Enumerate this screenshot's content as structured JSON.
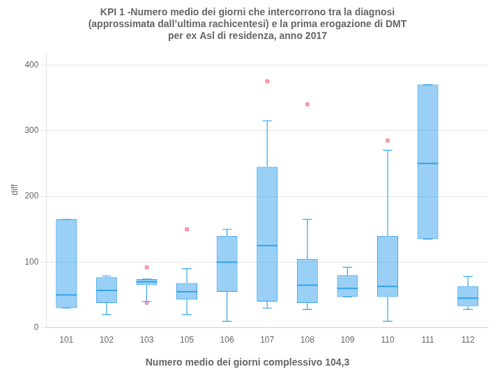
{
  "chart_data": {
    "type": "box",
    "title": "KPI 1 -Numero medio dei giorni che intercorrono tra la diagnosi\n(approssimata dall’ultima rachicentesi) e la prima erogazione di DMT\nper ex Asl di residenza, anno 2017",
    "subtitle": "Numero medio dei giorni complessivo 104,3",
    "ylabel": "diff",
    "categories": [
      "101",
      "102",
      "103",
      "105",
      "106",
      "107",
      "108",
      "109",
      "110",
      "111",
      "112"
    ],
    "q1": [
      30,
      38,
      65,
      43,
      55,
      40,
      38,
      47,
      47,
      135,
      33
    ],
    "median": [
      50,
      57,
      70,
      55,
      100,
      125,
      65,
      60,
      63,
      250,
      45
    ],
    "q3": [
      165,
      77,
      74,
      68,
      140,
      245,
      105,
      80,
      140,
      370,
      63
    ],
    "whislo": [
      30,
      20,
      40,
      20,
      10,
      30,
      28,
      47,
      10,
      135,
      28
    ],
    "whishi": [
      165,
      79,
      74,
      90,
      150,
      315,
      165,
      92,
      270,
      370,
      78
    ],
    "fliers": [
      [],
      [],
      [
        92,
        38
      ],
      [
        150
      ],
      [],
      [
        375
      ],
      [
        340
      ],
      [],
      [
        285
      ],
      [],
      []
    ],
    "ylim": [
      0,
      420
    ],
    "yticks": [
      0,
      100,
      200,
      300,
      400
    ],
    "grid": true
  }
}
